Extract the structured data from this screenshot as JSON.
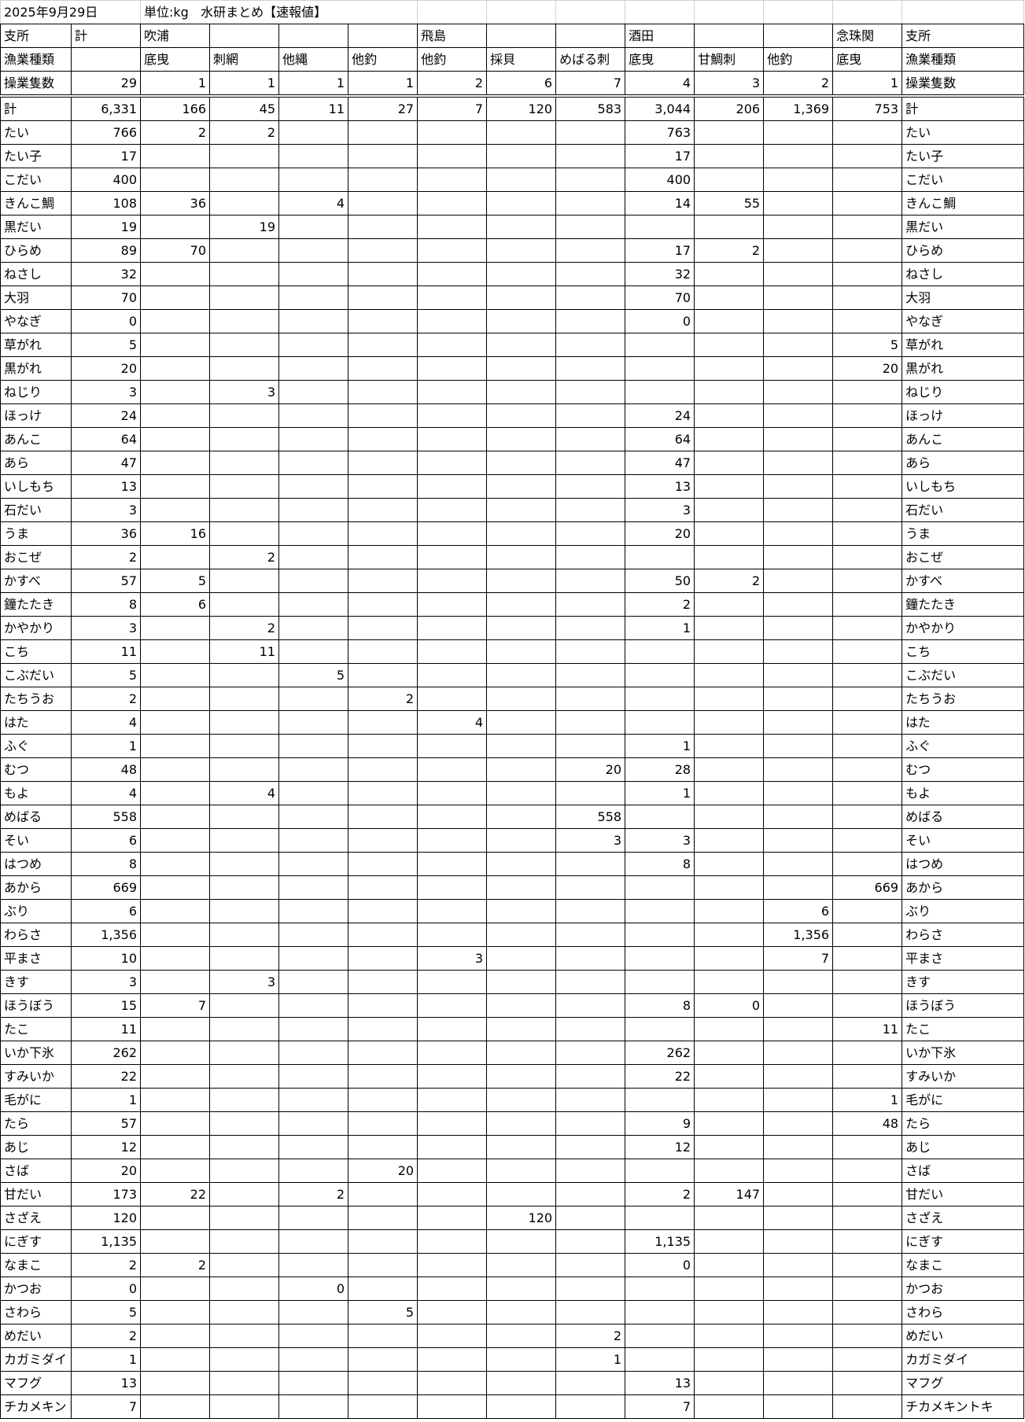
{
  "header": {
    "date": "2025年9月29日",
    "unit": "単位:kg",
    "title": "水研まとめ【速報値】"
  },
  "table": {
    "branch_row": [
      "支所",
      "計",
      "吹浦",
      null,
      null,
      null,
      "飛島",
      null,
      null,
      "酒田",
      null,
      null,
      "念珠関"
    ],
    "gear_row": [
      "漁業種類",
      null,
      "底曳",
      "刺網",
      "他縄",
      "他釣",
      "他釣",
      "採貝",
      "めばる刺",
      "底曳",
      "甘鯛刺",
      "他釣",
      "底曳"
    ],
    "rows": [
      [
        "操業隻数",
        "29",
        "1",
        "1",
        "1",
        "1",
        "2",
        "6",
        "7",
        "4",
        "3",
        "2",
        "1"
      ],
      [
        "計",
        "6,331",
        "166",
        "45",
        "11",
        "27",
        "7",
        "120",
        "583",
        "3,044",
        "206",
        "1,369",
        "753"
      ],
      [
        "たい",
        "766",
        "2",
        "2",
        null,
        null,
        null,
        null,
        null,
        "763",
        null,
        null,
        null
      ],
      [
        "たい子",
        "17",
        null,
        null,
        null,
        null,
        null,
        null,
        null,
        "17",
        null,
        null,
        null
      ],
      [
        "こだい",
        "400",
        null,
        null,
        null,
        null,
        null,
        null,
        null,
        "400",
        null,
        null,
        null
      ],
      [
        "きんこ鯛",
        "108",
        "36",
        null,
        "4",
        null,
        null,
        null,
        null,
        "14",
        "55",
        null,
        null
      ],
      [
        "黒だい",
        "19",
        null,
        "19",
        null,
        null,
        null,
        null,
        null,
        null,
        null,
        null,
        null
      ],
      [
        "ひらめ",
        "89",
        "70",
        null,
        null,
        null,
        null,
        null,
        null,
        "17",
        "2",
        null,
        null
      ],
      [
        "ねさし",
        "32",
        null,
        null,
        null,
        null,
        null,
        null,
        null,
        "32",
        null,
        null,
        null
      ],
      [
        "大羽",
        "70",
        null,
        null,
        null,
        null,
        null,
        null,
        null,
        "70",
        null,
        null,
        null
      ],
      [
        "やなぎ",
        "0",
        null,
        null,
        null,
        null,
        null,
        null,
        null,
        "0",
        null,
        null,
        null
      ],
      [
        "草がれ",
        "5",
        null,
        null,
        null,
        null,
        null,
        null,
        null,
        null,
        null,
        null,
        "5"
      ],
      [
        "黒がれ",
        "20",
        null,
        null,
        null,
        null,
        null,
        null,
        null,
        null,
        null,
        null,
        "20"
      ],
      [
        "ねじり",
        "3",
        null,
        "3",
        null,
        null,
        null,
        null,
        null,
        null,
        null,
        null,
        null
      ],
      [
        "ほっけ",
        "24",
        null,
        null,
        null,
        null,
        null,
        null,
        null,
        "24",
        null,
        null,
        null
      ],
      [
        "あんこ",
        "64",
        null,
        null,
        null,
        null,
        null,
        null,
        null,
        "64",
        null,
        null,
        null
      ],
      [
        "あら",
        "47",
        null,
        null,
        null,
        null,
        null,
        null,
        null,
        "47",
        null,
        null,
        null
      ],
      [
        "いしもち",
        "13",
        null,
        null,
        null,
        null,
        null,
        null,
        null,
        "13",
        null,
        null,
        null
      ],
      [
        "石だい",
        "3",
        null,
        null,
        null,
        null,
        null,
        null,
        null,
        "3",
        null,
        null,
        null
      ],
      [
        "うま",
        "36",
        "16",
        null,
        null,
        null,
        null,
        null,
        null,
        "20",
        null,
        null,
        null
      ],
      [
        "おこぜ",
        "2",
        null,
        "2",
        null,
        null,
        null,
        null,
        null,
        null,
        null,
        null,
        null
      ],
      [
        "かすべ",
        "57",
        "5",
        null,
        null,
        null,
        null,
        null,
        null,
        "50",
        "2",
        null,
        null
      ],
      [
        "鐘たたき",
        "8",
        "6",
        null,
        null,
        null,
        null,
        null,
        null,
        "2",
        null,
        null,
        null
      ],
      [
        "かやかり",
        "3",
        null,
        "2",
        null,
        null,
        null,
        null,
        null,
        "1",
        null,
        null,
        null
      ],
      [
        "こち",
        "11",
        null,
        "11",
        null,
        null,
        null,
        null,
        null,
        null,
        null,
        null,
        null
      ],
      [
        "こぶだい",
        "5",
        null,
        null,
        "5",
        null,
        null,
        null,
        null,
        null,
        null,
        null,
        null
      ],
      [
        "たちうお",
        "2",
        null,
        null,
        null,
        "2",
        null,
        null,
        null,
        null,
        null,
        null,
        null
      ],
      [
        "はた",
        "4",
        null,
        null,
        null,
        null,
        "4",
        null,
        null,
        null,
        null,
        null,
        null
      ],
      [
        "ふぐ",
        "1",
        null,
        null,
        null,
        null,
        null,
        null,
        null,
        "1",
        null,
        null,
        null
      ],
      [
        "むつ",
        "48",
        null,
        null,
        null,
        null,
        null,
        null,
        "20",
        "28",
        null,
        null,
        null
      ],
      [
        "もよ",
        "4",
        null,
        "4",
        null,
        null,
        null,
        null,
        null,
        "1",
        null,
        null,
        null
      ],
      [
        "めばる",
        "558",
        null,
        null,
        null,
        null,
        null,
        null,
        "558",
        null,
        null,
        null,
        null
      ],
      [
        "そい",
        "6",
        null,
        null,
        null,
        null,
        null,
        null,
        "3",
        "3",
        null,
        null,
        null
      ],
      [
        "はつめ",
        "8",
        null,
        null,
        null,
        null,
        null,
        null,
        null,
        "8",
        null,
        null,
        null
      ],
      [
        "あから",
        "669",
        null,
        null,
        null,
        null,
        null,
        null,
        null,
        null,
        null,
        null,
        "669"
      ],
      [
        "ぶり",
        "6",
        null,
        null,
        null,
        null,
        null,
        null,
        null,
        null,
        null,
        "6",
        null
      ],
      [
        "わらさ",
        "1,356",
        null,
        null,
        null,
        null,
        null,
        null,
        null,
        null,
        null,
        "1,356",
        null
      ],
      [
        "平まさ",
        "10",
        null,
        null,
        null,
        null,
        "3",
        null,
        null,
        null,
        null,
        "7",
        null
      ],
      [
        "きす",
        "3",
        null,
        "3",
        null,
        null,
        null,
        null,
        null,
        null,
        null,
        null,
        null
      ],
      [
        "ほうぼう",
        "15",
        "7",
        null,
        null,
        null,
        null,
        null,
        null,
        "8",
        "0",
        null,
        null
      ],
      [
        "たこ",
        "11",
        null,
        null,
        null,
        null,
        null,
        null,
        null,
        null,
        null,
        null,
        "11"
      ],
      [
        "いか下氷",
        "262",
        null,
        null,
        null,
        null,
        null,
        null,
        null,
        "262",
        null,
        null,
        null
      ],
      [
        "すみいか",
        "22",
        null,
        null,
        null,
        null,
        null,
        null,
        null,
        "22",
        null,
        null,
        null
      ],
      [
        "毛がに",
        "1",
        null,
        null,
        null,
        null,
        null,
        null,
        null,
        null,
        null,
        null,
        "1"
      ],
      [
        "たら",
        "57",
        null,
        null,
        null,
        null,
        null,
        null,
        null,
        "9",
        null,
        null,
        "48"
      ],
      [
        "あじ",
        "12",
        null,
        null,
        null,
        null,
        null,
        null,
        null,
        "12",
        null,
        null,
        null
      ],
      [
        "さば",
        "20",
        null,
        null,
        null,
        "20",
        null,
        null,
        null,
        null,
        null,
        null,
        null
      ],
      [
        "甘だい",
        "173",
        "22",
        null,
        "2",
        null,
        null,
        null,
        null,
        "2",
        "147",
        null,
        null
      ],
      [
        "さざえ",
        "120",
        null,
        null,
        null,
        null,
        null,
        "120",
        null,
        null,
        null,
        null,
        null
      ],
      [
        "にぎす",
        "1,135",
        null,
        null,
        null,
        null,
        null,
        null,
        null,
        "1,135",
        null,
        null,
        null
      ],
      [
        "なまこ",
        "2",
        "2",
        null,
        null,
        null,
        null,
        null,
        null,
        "0",
        null,
        null,
        null
      ],
      [
        "かつお",
        "0",
        null,
        null,
        "0",
        null,
        null,
        null,
        null,
        null,
        null,
        null,
        null
      ],
      [
        "さわら",
        "5",
        null,
        null,
        null,
        "5",
        null,
        null,
        null,
        null,
        null,
        null,
        null
      ],
      [
        "めだい",
        "2",
        null,
        null,
        null,
        null,
        null,
        null,
        "2",
        null,
        null,
        null,
        null
      ],
      [
        "カガミダイ",
        "1",
        null,
        null,
        null,
        null,
        null,
        null,
        "1",
        null,
        null,
        null,
        null
      ],
      [
        "マフグ",
        "13",
        null,
        null,
        null,
        null,
        null,
        null,
        null,
        "13",
        null,
        null,
        null
      ],
      [
        "チカメキントキ",
        "7",
        null,
        null,
        null,
        null,
        null,
        null,
        null,
        "7",
        null,
        null,
        null
      ]
    ]
  }
}
